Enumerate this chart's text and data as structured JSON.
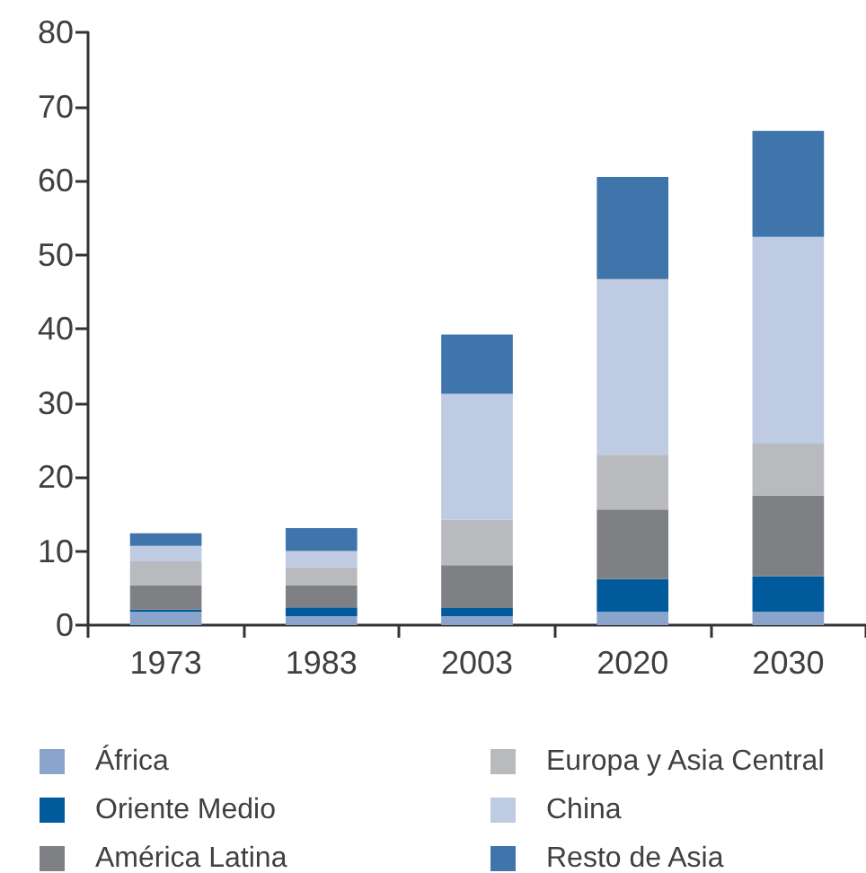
{
  "chart_data": {
    "type": "bar",
    "stacked": true,
    "categories": [
      "1973",
      "1983",
      "2003",
      "2020",
      "2030"
    ],
    "series": [
      {
        "name": "África",
        "color": "#8aa4cc",
        "values": [
          1.8,
          1.2,
          1.2,
          1.8,
          1.8
        ]
      },
      {
        "name": "Oriente Medio",
        "color": "#005a9c",
        "values": [
          0.3,
          1.2,
          1.1,
          4.4,
          4.8
        ]
      },
      {
        "name": "América Latina",
        "color": "#7f8084",
        "values": [
          3.3,
          3.0,
          5.8,
          9.4,
          10.9
        ]
      },
      {
        "name": "Europa y Asia Central",
        "color": "#b9babe",
        "values": [
          3.2,
          2.4,
          6.1,
          7.4,
          7.0
        ]
      },
      {
        "name": "China",
        "color": "#bfcbe3",
        "values": [
          2.1,
          2.2,
          17.0,
          23.7,
          27.9
        ]
      },
      {
        "name": "Resto de Asia",
        "color": "#4075ab",
        "values": [
          1.7,
          3.1,
          8.0,
          13.8,
          14.3
        ]
      }
    ],
    "ylim": [
      0,
      80
    ],
    "yticks": [
      0,
      10,
      20,
      30,
      40,
      50,
      60,
      70,
      80
    ],
    "grid": false,
    "legend": "bottom"
  }
}
